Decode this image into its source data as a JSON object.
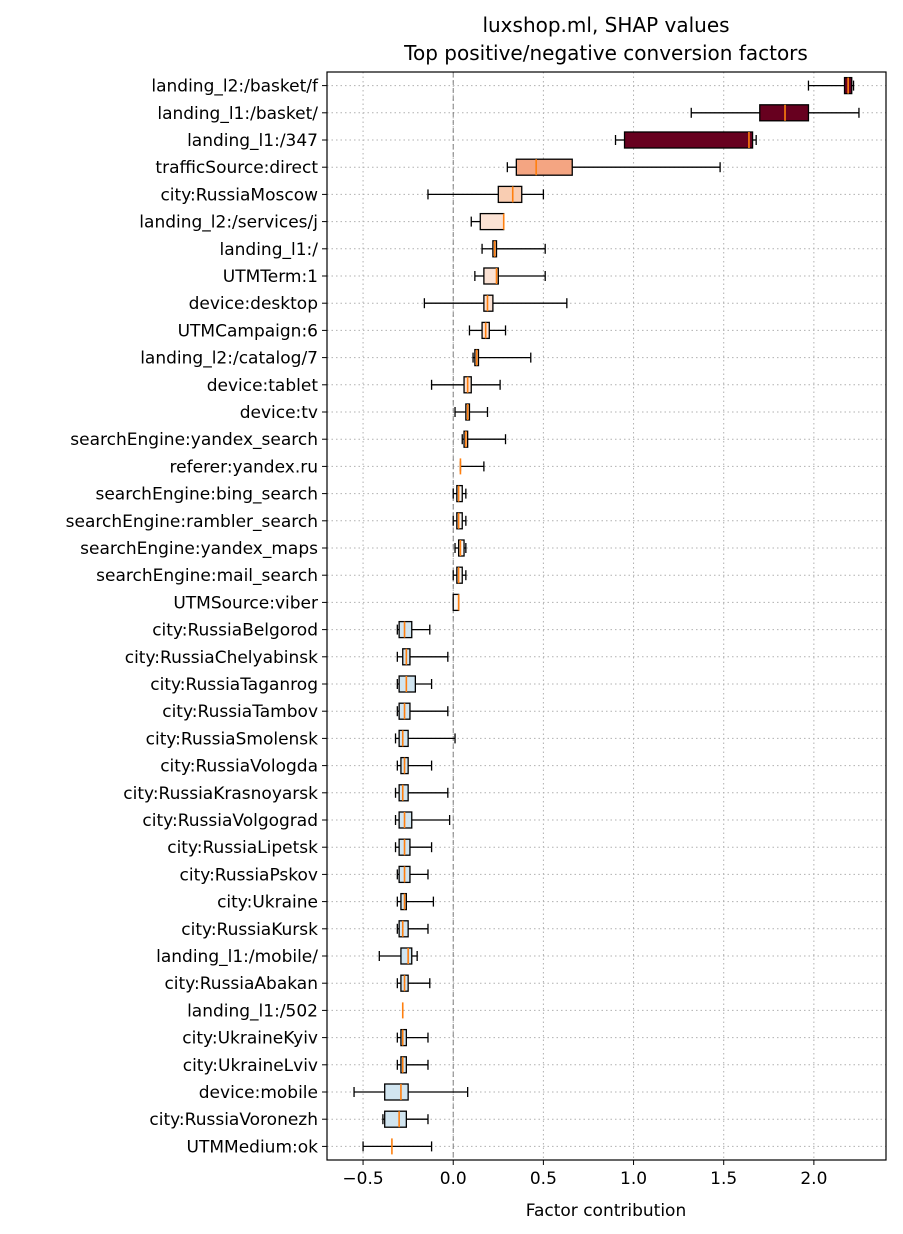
{
  "chart_data": {
    "type": "boxplot",
    "orientation": "horizontal",
    "title": "luxshop.ml, SHAP values",
    "subtitle": "Top positive/negative conversion factors",
    "xlabel": "Factor contribution",
    "ylabel": "",
    "xlim": [
      -0.7,
      2.4
    ],
    "xticks": [
      -0.5,
      0.0,
      0.5,
      1.0,
      1.5,
      2.0
    ],
    "xtick_labels": [
      "−0.5",
      "0.0",
      "0.5",
      "1.0",
      "1.5",
      "2.0"
    ],
    "grid": true,
    "reference_line_x": 0,
    "colors": {
      "median": "#ff7f0e",
      "whisker": "#000000",
      "grid": "#b0b0b0",
      "zero_line": "#808080"
    },
    "categories": [
      "landing_l2:/basket/f",
      "landing_l1:/basket/",
      "landing_l1:/347",
      "trafficSource:direct",
      "city:RussiaMoscow",
      "landing_l2:/services/j",
      "landing_l1:/",
      "UTMTerm:1",
      "device:desktop",
      "UTMCampaign:6",
      "landing_l2:/catalog/7",
      "device:tablet",
      "device:tv",
      "searchEngine:yandex_search",
      "referer:yandex.ru",
      "searchEngine:bing_search",
      "searchEngine:rambler_search",
      "searchEngine:yandex_maps",
      "searchEngine:mail_search",
      "UTMSource:viber",
      "city:RussiaBelgorod",
      "city:RussiaChelyabinsk",
      "city:RussiaTaganrog",
      "city:RussiaTambov",
      "city:RussiaSmolensk",
      "city:RussiaVologda",
      "city:RussiaKrasnoyarsk",
      "city:RussiaVolgograd",
      "city:RussiaLipetsk",
      "city:RussiaPskov",
      "city:Ukraine",
      "city:RussiaKursk",
      "landing_l1:/mobile/",
      "city:RussiaAbakan",
      "landing_l1:/502",
      "city:UkraineKyiv",
      "city:UkraineLviv",
      "device:mobile",
      "city:RussiaVoronezh",
      "UTMMedium:ok"
    ],
    "boxes": [
      {
        "whislo": 1.97,
        "q1": 2.17,
        "med": 2.19,
        "q3": 2.21,
        "whishi": 2.22,
        "fill": "#67001f"
      },
      {
        "whislo": 1.32,
        "q1": 1.7,
        "med": 1.84,
        "q3": 1.97,
        "whishi": 2.25,
        "fill": "#67001f"
      },
      {
        "whislo": 0.9,
        "q1": 0.95,
        "med": 1.64,
        "q3": 1.66,
        "whishi": 1.68,
        "fill": "#67001f"
      },
      {
        "whislo": 0.3,
        "q1": 0.35,
        "med": 0.46,
        "q3": 0.66,
        "whishi": 1.48,
        "fill": "#f4a582"
      },
      {
        "whislo": -0.14,
        "q1": 0.25,
        "med": 0.33,
        "q3": 0.38,
        "whishi": 0.5,
        "fill": "#f9cdb2"
      },
      {
        "whislo": 0.1,
        "q1": 0.15,
        "med": 0.28,
        "q3": 0.28,
        "whishi": 0.28,
        "fill": "#fbe2d4"
      },
      {
        "whislo": 0.16,
        "q1": 0.22,
        "med": 0.23,
        "q3": 0.24,
        "whishi": 0.51,
        "fill": "#fbe2d4"
      },
      {
        "whislo": 0.12,
        "q1": 0.17,
        "med": 0.24,
        "q3": 0.25,
        "whishi": 0.51,
        "fill": "#fbe2d4"
      },
      {
        "whislo": -0.16,
        "q1": 0.17,
        "med": 0.19,
        "q3": 0.22,
        "whishi": 0.63,
        "fill": "#fbe2d4"
      },
      {
        "whislo": 0.09,
        "q1": 0.16,
        "med": 0.18,
        "q3": 0.2,
        "whishi": 0.29,
        "fill": "#fbe2d4"
      },
      {
        "whislo": 0.11,
        "q1": 0.12,
        "med": 0.13,
        "q3": 0.14,
        "whishi": 0.43,
        "fill": "#fbe2d4"
      },
      {
        "whislo": -0.12,
        "q1": 0.06,
        "med": 0.08,
        "q3": 0.1,
        "whishi": 0.26,
        "fill": "#fbe2d4"
      },
      {
        "whislo": 0.01,
        "q1": 0.07,
        "med": 0.08,
        "q3": 0.09,
        "whishi": 0.19,
        "fill": "#fbe2d4"
      },
      {
        "whislo": 0.05,
        "q1": 0.06,
        "med": 0.07,
        "q3": 0.08,
        "whishi": 0.29,
        "fill": "#fbe2d4"
      },
      {
        "whislo": 0.04,
        "q1": 0.04,
        "med": 0.04,
        "q3": 0.04,
        "whishi": 0.17,
        "fill": "#fbe2d4"
      },
      {
        "whislo": 0.0,
        "q1": 0.02,
        "med": 0.03,
        "q3": 0.05,
        "whishi": 0.07,
        "fill": "#f7f7f7"
      },
      {
        "whislo": 0.0,
        "q1": 0.02,
        "med": 0.03,
        "q3": 0.05,
        "whishi": 0.07,
        "fill": "#f7f7f7"
      },
      {
        "whislo": 0.01,
        "q1": 0.03,
        "med": 0.04,
        "q3": 0.06,
        "whishi": 0.07,
        "fill": "#f7f7f7"
      },
      {
        "whislo": 0.0,
        "q1": 0.02,
        "med": 0.03,
        "q3": 0.05,
        "whishi": 0.07,
        "fill": "#f7f7f7"
      },
      {
        "whislo": 0.0,
        "q1": 0.0,
        "med": 0.03,
        "q3": 0.03,
        "whishi": 0.03,
        "fill": "#f7f7f7"
      },
      {
        "whislo": -0.31,
        "q1": -0.3,
        "med": -0.27,
        "q3": -0.23,
        "whishi": -0.13,
        "fill": "#d1e5f0"
      },
      {
        "whislo": -0.31,
        "q1": -0.28,
        "med": -0.26,
        "q3": -0.24,
        "whishi": -0.03,
        "fill": "#d1e5f0"
      },
      {
        "whislo": -0.31,
        "q1": -0.3,
        "med": -0.26,
        "q3": -0.21,
        "whishi": -0.12,
        "fill": "#d1e5f0"
      },
      {
        "whislo": -0.31,
        "q1": -0.3,
        "med": -0.27,
        "q3": -0.24,
        "whishi": -0.03,
        "fill": "#d1e5f0"
      },
      {
        "whislo": -0.32,
        "q1": -0.3,
        "med": -0.28,
        "q3": -0.25,
        "whishi": 0.01,
        "fill": "#d1e5f0"
      },
      {
        "whislo": -0.31,
        "q1": -0.29,
        "med": -0.27,
        "q3": -0.25,
        "whishi": -0.12,
        "fill": "#d1e5f0"
      },
      {
        "whislo": -0.32,
        "q1": -0.3,
        "med": -0.28,
        "q3": -0.25,
        "whishi": -0.03,
        "fill": "#d1e5f0"
      },
      {
        "whislo": -0.32,
        "q1": -0.3,
        "med": -0.27,
        "q3": -0.23,
        "whishi": -0.02,
        "fill": "#d1e5f0"
      },
      {
        "whislo": -0.32,
        "q1": -0.3,
        "med": -0.27,
        "q3": -0.24,
        "whishi": -0.12,
        "fill": "#d1e5f0"
      },
      {
        "whislo": -0.31,
        "q1": -0.3,
        "med": -0.27,
        "q3": -0.24,
        "whishi": -0.14,
        "fill": "#d1e5f0"
      },
      {
        "whislo": -0.31,
        "q1": -0.29,
        "med": -0.27,
        "q3": -0.26,
        "whishi": -0.11,
        "fill": "#d1e5f0"
      },
      {
        "whislo": -0.31,
        "q1": -0.3,
        "med": -0.28,
        "q3": -0.25,
        "whishi": -0.14,
        "fill": "#d1e5f0"
      },
      {
        "whislo": -0.41,
        "q1": -0.29,
        "med": -0.25,
        "q3": -0.23,
        "whishi": -0.2,
        "fill": "#d1e5f0"
      },
      {
        "whislo": -0.31,
        "q1": -0.29,
        "med": -0.27,
        "q3": -0.25,
        "whishi": -0.13,
        "fill": "#d1e5f0"
      },
      {
        "whislo": -0.28,
        "q1": -0.28,
        "med": -0.28,
        "q3": -0.28,
        "whishi": -0.28,
        "fill": "#d1e5f0"
      },
      {
        "whislo": -0.31,
        "q1": -0.29,
        "med": -0.28,
        "q3": -0.26,
        "whishi": -0.14,
        "fill": "#d1e5f0"
      },
      {
        "whislo": -0.31,
        "q1": -0.29,
        "med": -0.28,
        "q3": -0.26,
        "whishi": -0.14,
        "fill": "#d1e5f0"
      },
      {
        "whislo": -0.55,
        "q1": -0.38,
        "med": -0.29,
        "q3": -0.25,
        "whishi": 0.08,
        "fill": "#d1e5f0"
      },
      {
        "whislo": -0.39,
        "q1": -0.38,
        "med": -0.3,
        "q3": -0.26,
        "whishi": -0.14,
        "fill": "#d1e5f0"
      },
      {
        "whislo": -0.5,
        "q1": -0.34,
        "med": -0.34,
        "q3": -0.34,
        "whishi": -0.12,
        "fill": "#d1e5f0"
      }
    ]
  }
}
